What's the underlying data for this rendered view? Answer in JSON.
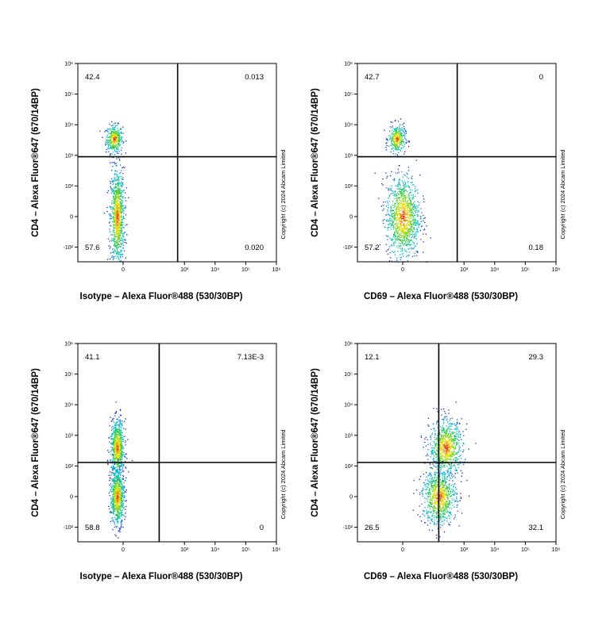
{
  "copyright": "Copyright (c) 2024 Abcam Limited",
  "chart_data": [
    {
      "type": "scatter",
      "xlabel": "Isotype – Alexa Fluor®488 (530/30BP)",
      "ylabel": "CD4 – Alexa Fluor®647 (670/14BP)",
      "x_ticks": [
        "0",
        "10³",
        "10⁴",
        "10⁵",
        "10⁶"
      ],
      "y_ticks": [
        "-10²",
        "0",
        "10²",
        "10³",
        "10⁴",
        "10⁵",
        "10⁶"
      ],
      "x_gate": 600,
      "y_gate": 900,
      "quadrants": {
        "upper_left": "42.4",
        "upper_right": "0.013",
        "lower_left": "57.6",
        "lower_right": "0.020"
      },
      "populations": [
        {
          "x": -30,
          "y": 3500,
          "n": 350,
          "spread_x": 0.06,
          "spread_y": 0.1
        },
        {
          "x": -20,
          "y": 0,
          "n": 900,
          "spread_x": 0.05,
          "spread_y": 0.35
        }
      ]
    },
    {
      "type": "scatter",
      "xlabel": "CD69 – Alexa Fluor®488 (530/30BP)",
      "ylabel": "CD4 – Alexa Fluor®647 (670/14BP)",
      "x_ticks": [
        "0",
        "10³",
        "10⁴",
        "10⁵",
        "10⁶"
      ],
      "y_ticks": [
        "-10²",
        "0",
        "10²",
        "10³",
        "10⁴",
        "10⁵",
        "10⁶"
      ],
      "x_gate": 600,
      "y_gate": 900,
      "quadrants": {
        "upper_left": "42.7",
        "upper_right": "0",
        "lower_left": "57.2",
        "lower_right": "0.18"
      },
      "populations": [
        {
          "x": -20,
          "y": 3500,
          "n": 300,
          "spread_x": 0.06,
          "spread_y": 0.1
        },
        {
          "x": 0,
          "y": 0,
          "n": 1100,
          "spread_x": 0.12,
          "spread_y": 0.3
        }
      ]
    },
    {
      "type": "scatter",
      "xlabel": "Isotype – Alexa Fluor®488 (530/30BP)",
      "ylabel": "CD4 – Alexa Fluor®647 (670/14BP)",
      "x_ticks": [
        "0",
        "10³",
        "10⁴",
        "10⁵",
        "10⁶"
      ],
      "y_ticks": [
        "-10²",
        "0",
        "10²",
        "10³",
        "10⁴",
        "10⁵",
        "10⁶"
      ],
      "x_gate": 150,
      "y_gate": 130,
      "quadrants": {
        "upper_left": "41.1",
        "upper_right": "7.13E-3",
        "lower_left": "58.8",
        "lower_right": "0"
      },
      "populations": [
        {
          "x": -20,
          "y": 400,
          "n": 700,
          "spread_x": 0.05,
          "spread_y": 0.2
        },
        {
          "x": -20,
          "y": 0,
          "n": 700,
          "spread_x": 0.05,
          "spread_y": 0.2
        }
      ]
    },
    {
      "type": "scatter",
      "xlabel": "CD69 – Alexa Fluor®488 (530/30BP)",
      "ylabel": "CD4 – Alexa Fluor®647 (670/14BP)",
      "x_ticks": [
        "0",
        "10³",
        "10⁴",
        "10⁵",
        "10⁶"
      ],
      "y_ticks": [
        "-10²",
        "0",
        "10²",
        "10³",
        "10⁴",
        "10⁵",
        "10⁶"
      ],
      "x_gate": 150,
      "y_gate": 130,
      "quadrants": {
        "upper_left": "12.1",
        "upper_right": "29.3",
        "lower_left": "26.5",
        "lower_right": "32.1"
      },
      "populations": [
        {
          "x": 250,
          "y": 400,
          "n": 800,
          "spread_x": 0.12,
          "spread_y": 0.2
        },
        {
          "x": 150,
          "y": 0,
          "n": 800,
          "spread_x": 0.12,
          "spread_y": 0.2
        }
      ]
    }
  ]
}
